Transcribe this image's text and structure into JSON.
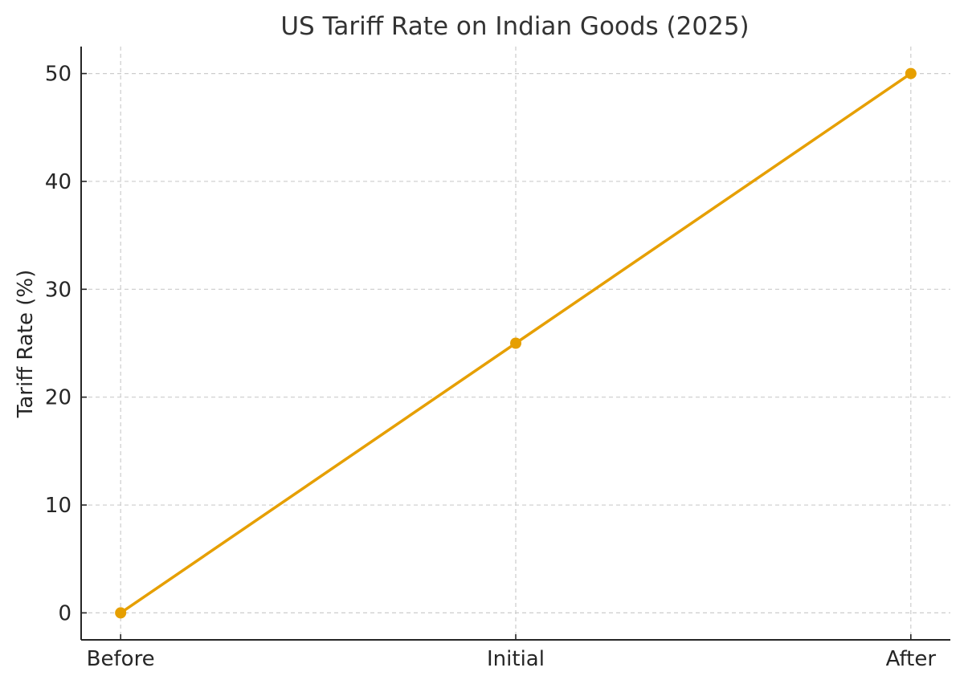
{
  "chart_data": {
    "type": "line",
    "title": "US Tariff Rate on Indian Goods (2025)",
    "xlabel": "",
    "ylabel": "Tariff Rate (%)",
    "categories": [
      "Before",
      "Initial",
      "After"
    ],
    "values": [
      0,
      25,
      50
    ],
    "ylim": [
      -2.5,
      52.5
    ],
    "xlim": [
      -0.1,
      2.1
    ],
    "yticks": [
      0,
      10,
      20,
      30,
      40,
      50
    ],
    "grid": true,
    "grid_style": "dashed",
    "marker": "circle",
    "line_color": "#E69F00",
    "legend": "none"
  }
}
